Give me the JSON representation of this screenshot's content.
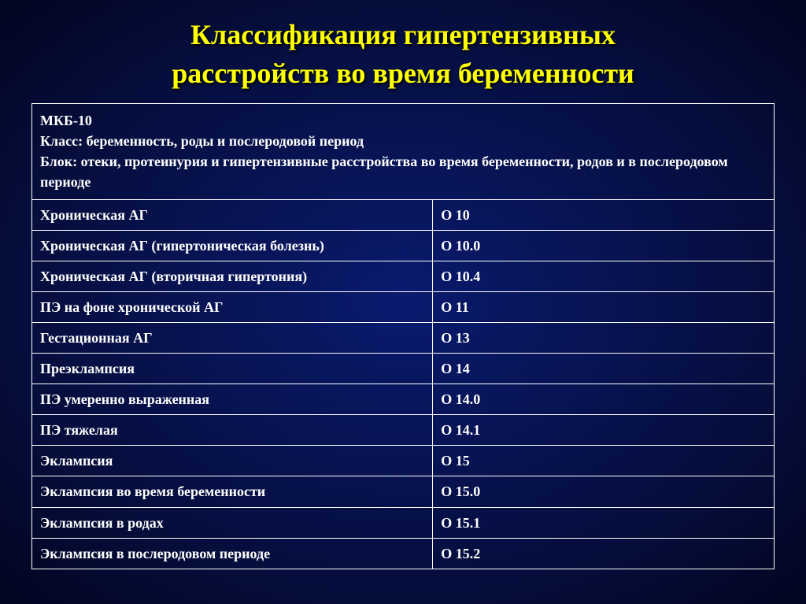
{
  "title_line1": "Классификация гипертензивных",
  "title_line2": "расстройств во время беременности",
  "header": {
    "line1": "МКБ-10",
    "line2": "Класс: беременность, роды и послеродовой период",
    "line3": "Блок: отеки, протеинурия и гипертензивные расстройства во время беременности, родов и в послеродовом периоде"
  },
  "rows": [
    {
      "name": "Хроническая АГ",
      "code": "О 10"
    },
    {
      "name": "Хроническая АГ (гипертоническая болезнь)",
      "code": "О 10.0"
    },
    {
      "name": "Хроническая АГ (вторичная гипертония)",
      "code": "О 10.4"
    },
    {
      "name": "ПЭ на фоне хронической АГ",
      "code": "О 11"
    },
    {
      "name": "Гестационная АГ",
      "code": "О 13"
    },
    {
      "name": "Преэклампсия",
      "code": "О 14"
    },
    {
      "name": "ПЭ умеренно выраженная",
      "code": "О 14.0"
    },
    {
      "name": "ПЭ тяжелая",
      "code": "О 14.1"
    },
    {
      "name": "Эклампсия",
      "code": "О 15"
    },
    {
      "name": "Эклампсия во время беременности",
      "code": "О 15.0"
    },
    {
      "name": "Эклампсия в родах",
      "code": "О 15.1"
    },
    {
      "name": "Эклампсия в послеродовом периоде",
      "code": "О 15.2"
    }
  ],
  "style": {
    "title_color": "#ffff00",
    "title_fontsize": 36,
    "cell_fontsize": 18,
    "border_color": "#ffffff",
    "text_color": "#ffffff",
    "bg_gradient_inner": "#0a1a6e",
    "bg_gradient_outer": "#020520"
  }
}
